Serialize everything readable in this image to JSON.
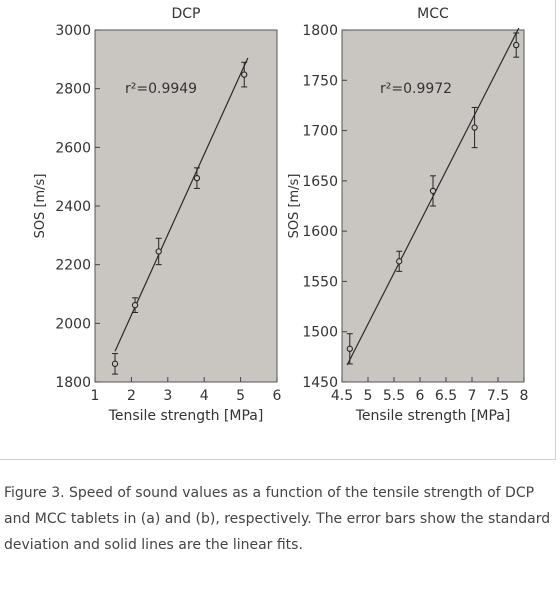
{
  "chart_data": [
    {
      "type": "scatter",
      "title": "DCP",
      "xlabel": "Tensile strength [MPa]",
      "ylabel": "SOS [m/s]",
      "xlim": [
        1,
        6
      ],
      "ylim": [
        1800,
        3000
      ],
      "xticks": [
        1,
        2,
        3,
        4,
        5,
        6
      ],
      "yticks": [
        1800,
        2000,
        2200,
        2400,
        2600,
        2800,
        3000
      ],
      "annotation": "r²=0.9949",
      "grid": false,
      "background": "#c9c6c2",
      "points": [
        {
          "x": 1.55,
          "y": 1862,
          "err": 35
        },
        {
          "x": 2.1,
          "y": 2062,
          "err": 25
        },
        {
          "x": 2.75,
          "y": 2245,
          "err": 45
        },
        {
          "x": 3.8,
          "y": 2495,
          "err": 35
        },
        {
          "x": 5.1,
          "y": 2848,
          "err": 42
        }
      ],
      "fit": [
        {
          "x": 1.55,
          "y": 1905
        },
        {
          "x": 5.2,
          "y": 2905
        }
      ]
    },
    {
      "type": "scatter",
      "title": "MCC",
      "xlabel": "Tensile strength [MPa]",
      "ylabel": "SOS [m/s]",
      "xlim": [
        4.5,
        8
      ],
      "ylim": [
        1450,
        1800
      ],
      "xticks": [
        4.5,
        5,
        5.5,
        6,
        6.5,
        7,
        7.5,
        8
      ],
      "yticks": [
        1450,
        1500,
        1550,
        1600,
        1650,
        1700,
        1750,
        1800
      ],
      "annotation": "r²=0.9972",
      "grid": false,
      "background": "#c9c6c2",
      "points": [
        {
          "x": 4.65,
          "y": 1483,
          "err": 15
        },
        {
          "x": 5.6,
          "y": 1570,
          "err": 10
        },
        {
          "x": 6.25,
          "y": 1640,
          "err": 15
        },
        {
          "x": 7.05,
          "y": 1703,
          "err": 20
        },
        {
          "x": 7.85,
          "y": 1785,
          "err": 12
        }
      ],
      "fit": [
        {
          "x": 4.6,
          "y": 1467
        },
        {
          "x": 7.9,
          "y": 1802
        }
      ]
    }
  ],
  "caption": "Figure 3. Speed of sound values as a function of the tensile strength of DCP and MCC tablets in (a) and (b), respectively. The error bars show the standard deviation and solid lines are the linear fits."
}
